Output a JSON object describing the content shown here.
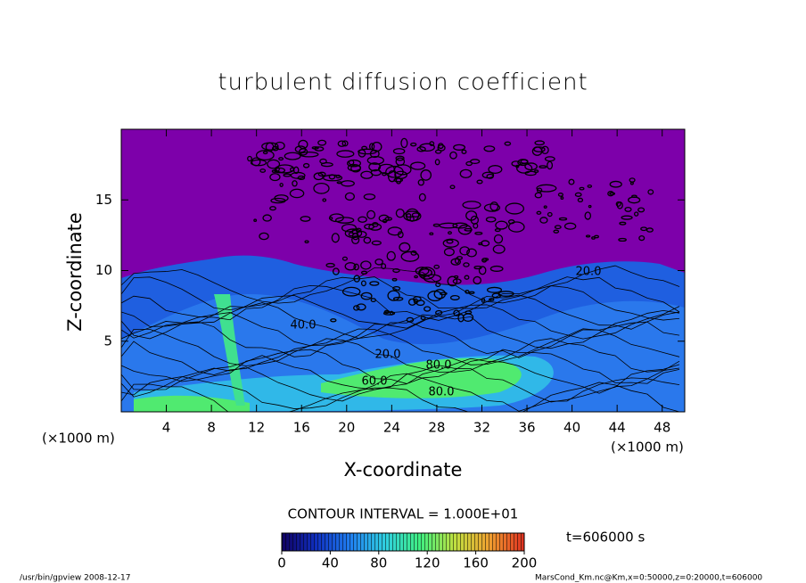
{
  "chart_data": {
    "type": "contour",
    "title": "turbulent diffusion coefficient",
    "x_label": "X-coordinate",
    "y_label": "Z-coordinate",
    "x_unit": "(×1000 m)",
    "y_unit": "(×1000 m)",
    "xlim": [
      0,
      50
    ],
    "xticks": [
      4,
      8,
      12,
      16,
      20,
      24,
      28,
      32,
      36,
      40,
      44,
      48
    ],
    "ylim": [
      0,
      20
    ],
    "yticks": [
      5,
      10,
      15
    ],
    "contour_labels": [
      "40.0",
      "20.0",
      "80.0",
      "80.0",
      "60.0",
      "20.0"
    ],
    "contour_interval": "CONTOUR INTERVAL = 1.000E+01",
    "time_label": "t=606000 s",
    "colorbar": {
      "clim": [
        0,
        200
      ],
      "ticks": [
        0,
        40,
        80,
        120,
        160,
        200
      ],
      "colors": [
        "#100060",
        "#1030c0",
        "#2080f0",
        "#30d0e0",
        "#40f080",
        "#c0e040",
        "#f0a030",
        "#e03020"
      ]
    },
    "field_color": "#7d00aa",
    "footer_left": "/usr/bin/gpview   2008-12-17",
    "footer_right": "MarsCond_Km.nc@Km,x=0:50000,z=0:20000,t=606000"
  }
}
